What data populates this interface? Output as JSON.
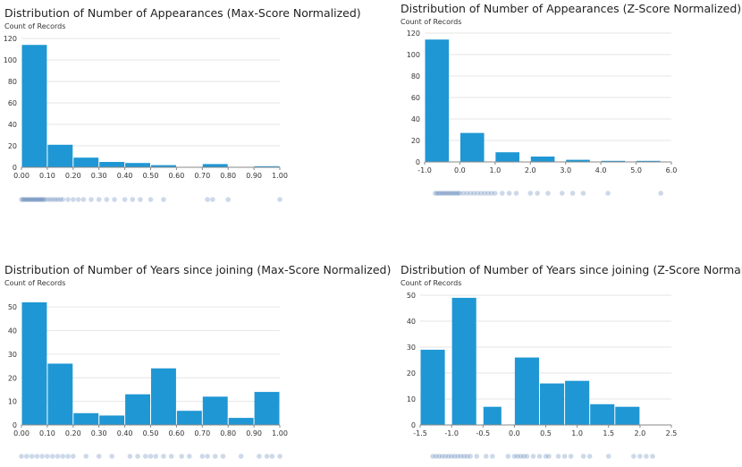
{
  "y_axis_caption": "Count of Records",
  "chart_data": [
    {
      "id": "c1",
      "type": "bar",
      "subtype": "histogram",
      "title": "Distribution of Number of Appearances (Max-Score Normalized)",
      "ylabel": "Count of Records",
      "ylim": [
        0,
        120
      ],
      "yticks": [
        0,
        20,
        40,
        60,
        80,
        100,
        120
      ],
      "xlim": [
        0,
        1
      ],
      "xticks": [
        "0.00",
        "0.10",
        "0.20",
        "0.30",
        "0.40",
        "0.50",
        "0.60",
        "0.70",
        "0.80",
        "0.90",
        "1.00"
      ],
      "bins": [
        {
          "x0": 0.0,
          "x1": 0.1,
          "value": 114
        },
        {
          "x0": 0.1,
          "x1": 0.2,
          "value": 21
        },
        {
          "x0": 0.2,
          "x1": 0.3,
          "value": 9
        },
        {
          "x0": 0.3,
          "x1": 0.4,
          "value": 5
        },
        {
          "x0": 0.4,
          "x1": 0.5,
          "value": 4
        },
        {
          "x0": 0.5,
          "x1": 0.6,
          "value": 2
        },
        {
          "x0": 0.6,
          "x1": 0.7,
          "value": 0
        },
        {
          "x0": 0.7,
          "x1": 0.8,
          "value": 3
        },
        {
          "x0": 0.8,
          "x1": 0.9,
          "value": 0
        },
        {
          "x0": 0.9,
          "x1": 1.0,
          "value": 1
        }
      ],
      "strip_points": [
        0,
        0.005,
        0.01,
        0.015,
        0.02,
        0.025,
        0.03,
        0.035,
        0.04,
        0.045,
        0.05,
        0.055,
        0.06,
        0.065,
        0.07,
        0.075,
        0.08,
        0.085,
        0.09,
        0.1,
        0.11,
        0.12,
        0.13,
        0.14,
        0.15,
        0.16,
        0.18,
        0.2,
        0.22,
        0.24,
        0.27,
        0.3,
        0.33,
        0.36,
        0.4,
        0.43,
        0.46,
        0.5,
        0.55,
        0.72,
        0.74,
        0.8,
        1.0
      ]
    },
    {
      "id": "c2",
      "type": "bar",
      "subtype": "histogram",
      "title": "Distribution of Number of Appearances (Z-Score Normalized)",
      "ylabel": "Count of Records",
      "ylim": [
        0,
        120
      ],
      "yticks": [
        0,
        20,
        40,
        60,
        80,
        100,
        120
      ],
      "xlim": [
        -1.0,
        6.0
      ],
      "xticks": [
        "-1.0",
        "0.0",
        "1.0",
        "2.0",
        "3.0",
        "4.0",
        "5.0",
        "6.0"
      ],
      "bins": [
        {
          "x0": -1.0,
          "x1": -0.3,
          "value": 114
        },
        {
          "x0": 0.0,
          "x1": 0.7,
          "value": 27
        },
        {
          "x0": 1.0,
          "x1": 1.7,
          "value": 9
        },
        {
          "x0": 2.0,
          "x1": 2.7,
          "value": 5
        },
        {
          "x0": 3.0,
          "x1": 3.7,
          "value": 2
        },
        {
          "x0": 4.0,
          "x1": 4.7,
          "value": 1
        },
        {
          "x0": 5.0,
          "x1": 5.7,
          "value": 1
        }
      ],
      "strip_points": [
        -0.7,
        -0.65,
        -0.6,
        -0.55,
        -0.5,
        -0.45,
        -0.4,
        -0.35,
        -0.3,
        -0.25,
        -0.2,
        -0.15,
        -0.1,
        -0.05,
        0,
        0.1,
        0.2,
        0.3,
        0.4,
        0.5,
        0.6,
        0.7,
        0.8,
        0.9,
        1.0,
        1.2,
        1.4,
        1.6,
        2.0,
        2.2,
        2.5,
        2.9,
        3.2,
        3.5,
        4.2,
        5.7
      ]
    },
    {
      "id": "c3",
      "type": "bar",
      "subtype": "histogram",
      "title": "Distribution of Number of Years since joining (Max-Score Normalized)",
      "ylabel": "Count of Records",
      "ylim": [
        0,
        55
      ],
      "yticks": [
        0,
        10,
        20,
        30,
        40,
        50
      ],
      "xlim": [
        0,
        1
      ],
      "xticks": [
        "0.00",
        "0.10",
        "0.20",
        "0.30",
        "0.40",
        "0.50",
        "0.60",
        "0.70",
        "0.80",
        "0.90",
        "1.00"
      ],
      "bins": [
        {
          "x0": 0.0,
          "x1": 0.1,
          "value": 52
        },
        {
          "x0": 0.1,
          "x1": 0.2,
          "value": 26
        },
        {
          "x0": 0.2,
          "x1": 0.3,
          "value": 5
        },
        {
          "x0": 0.3,
          "x1": 0.4,
          "value": 4
        },
        {
          "x0": 0.4,
          "x1": 0.5,
          "value": 13
        },
        {
          "x0": 0.5,
          "x1": 0.6,
          "value": 24
        },
        {
          "x0": 0.6,
          "x1": 0.7,
          "value": 6
        },
        {
          "x0": 0.7,
          "x1": 0.8,
          "value": 12
        },
        {
          "x0": 0.8,
          "x1": 0.9,
          "value": 3
        },
        {
          "x0": 0.9,
          "x1": 1.0,
          "value": 14
        }
      ],
      "strip_points": [
        0,
        0.02,
        0.04,
        0.06,
        0.08,
        0.1,
        0.12,
        0.14,
        0.16,
        0.18,
        0.2,
        0.25,
        0.3,
        0.35,
        0.42,
        0.45,
        0.48,
        0.5,
        0.52,
        0.55,
        0.58,
        0.62,
        0.65,
        0.7,
        0.72,
        0.75,
        0.78,
        0.85,
        0.92,
        0.95,
        0.97,
        1.0
      ]
    },
    {
      "id": "c4",
      "type": "bar",
      "subtype": "histogram",
      "title": "Distribution of Number of Years since joining (Z-Score Normalized)",
      "ylabel": "Count of Records",
      "ylim": [
        0,
        50
      ],
      "yticks": [
        0,
        10,
        20,
        30,
        40,
        50
      ],
      "xlim": [
        -1.5,
        2.5
      ],
      "xticks": [
        "-1.5",
        "-1.0",
        "-0.5",
        "0.0",
        "0.5",
        "1.0",
        "1.5",
        "2.0",
        "2.5"
      ],
      "bins": [
        {
          "x0": -1.5,
          "x1": -1.1,
          "value": 29
        },
        {
          "x0": -1.0,
          "x1": -0.6,
          "value": 49
        },
        {
          "x0": -0.5,
          "x1": -0.2,
          "value": 7
        },
        {
          "x0": 0.0,
          "x1": 0.4,
          "value": 26
        },
        {
          "x0": 0.4,
          "x1": 0.8,
          "value": 16
        },
        {
          "x0": 0.8,
          "x1": 1.2,
          "value": 17
        },
        {
          "x0": 1.2,
          "x1": 1.6,
          "value": 8
        },
        {
          "x0": 1.6,
          "x1": 2.0,
          "value": 7
        }
      ],
      "strip_points": [
        -1.3,
        -1.25,
        -1.2,
        -1.15,
        -1.1,
        -1.05,
        -1.0,
        -0.95,
        -0.9,
        -0.85,
        -0.8,
        -0.75,
        -0.7,
        -0.6,
        -0.45,
        -0.35,
        -0.1,
        0.0,
        0.05,
        0.1,
        0.15,
        0.2,
        0.3,
        0.4,
        0.5,
        0.55,
        0.7,
        0.8,
        0.9,
        1.1,
        1.2,
        1.5,
        1.9,
        2.0,
        2.1,
        2.2
      ]
    }
  ]
}
